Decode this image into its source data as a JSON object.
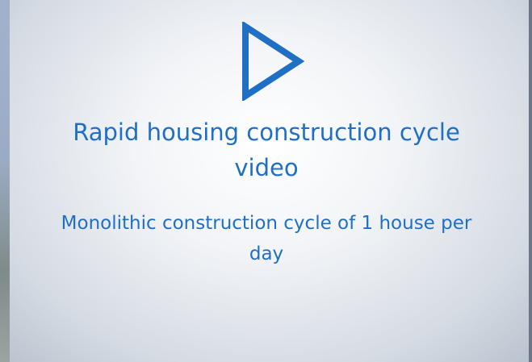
{
  "slide": {
    "title": "Rapid housing construction cycle video",
    "subtitle": "Monolithic construction cycle of 1 house per day"
  }
}
